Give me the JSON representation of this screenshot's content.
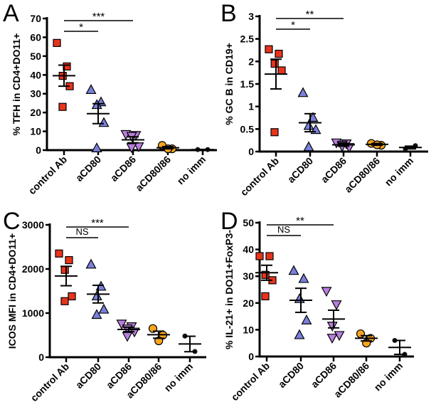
{
  "colors": {
    "control Ab": "#e8341c",
    "aCD80": "#7b80dc",
    "aCD86": "#b87fdc",
    "aCD80/86": "#f7a51e",
    "no imm": "#111111"
  },
  "chart_data": [
    {
      "panel": "A",
      "type": "scatter",
      "ylabel": "% TFH in CD4+DO11+",
      "ylim": [
        0,
        70
      ],
      "yticks": [
        0,
        10,
        20,
        30,
        40,
        50,
        60,
        70
      ],
      "categories": [
        "control Ab",
        "aCD80",
        "aCD86",
        "aCD80/86",
        "no imm"
      ],
      "values": [
        [
          57,
          44.5,
          39.5,
          34,
          23
        ],
        [
          32,
          25.5,
          24,
          14.5,
          1
        ],
        [
          8.5,
          8,
          7.5,
          2,
          1.5
        ],
        [
          2.5,
          0.7,
          0.7
        ],
        [
          0.3,
          0.3
        ]
      ],
      "mean": [
        39.6,
        19.4,
        5.5,
        1.3,
        0.3
      ],
      "sem": [
        5.6,
        5.3,
        1.6,
        0.6,
        0.1
      ],
      "significance": [
        {
          "from": "control Ab",
          "to": "aCD80",
          "label": "*"
        },
        {
          "from": "control Ab",
          "to": "aCD86",
          "label": "***"
        }
      ]
    },
    {
      "panel": "B",
      "type": "scatter",
      "ylabel": "% GC B in CD19+",
      "ylim": [
        0,
        3
      ],
      "yticks": [
        0,
        0.5,
        1.0,
        1.5,
        2.0,
        2.5,
        3.0
      ],
      "categories": [
        "control Ab",
        "aCD80",
        "aCD86",
        "aCD80/86",
        "no imm"
      ],
      "values": [
        [
          2.27,
          2.17,
          1.95,
          1.8,
          0.43
        ],
        [
          1.3,
          0.75,
          0.57,
          0.48,
          0.1
        ],
        [
          0.2,
          0.18,
          0.15,
          0.1,
          0.12
        ],
        [
          0.18,
          0.14,
          0.15
        ],
        [
          0.06,
          0.13
        ]
      ],
      "mean": [
        1.72,
        0.64,
        0.15,
        0.16,
        0.09
      ],
      "sem": [
        0.33,
        0.2,
        0.03,
        0.02,
        0.03
      ],
      "significance": [
        {
          "from": "control Ab",
          "to": "aCD80",
          "label": "*"
        },
        {
          "from": "control Ab",
          "to": "aCD86",
          "label": "**"
        }
      ]
    },
    {
      "panel": "C",
      "type": "scatter",
      "ylabel": "ICOS MFI in CD4+DO11+",
      "ylim": [
        0,
        3000
      ],
      "yticks": [
        0,
        1000,
        2000,
        3000
      ],
      "categories": [
        "control Ab",
        "aCD80",
        "aCD86",
        "aCD80/86",
        "no imm"
      ],
      "values": [
        [
          2350,
          2200,
          1980,
          1380,
          1270
        ],
        [
          2100,
          1600,
          1380,
          1080,
          960
        ],
        [
          760,
          700,
          650,
          580,
          480
        ],
        [
          650,
          500,
          370
        ],
        [
          480,
          130
        ]
      ],
      "mean": [
        1840,
        1430,
        630,
        510,
        300
      ],
      "sem": [
        220,
        200,
        50,
        80,
        175
      ],
      "significance": [
        {
          "from": "control Ab",
          "to": "aCD80",
          "label": "NS"
        },
        {
          "from": "control Ab",
          "to": "aCD86",
          "label": "***"
        }
      ]
    },
    {
      "panel": "D",
      "type": "scatter",
      "ylabel": "% IL-21+ in DO11+FoxP3-",
      "ylim": [
        0,
        50
      ],
      "yticks": [
        0,
        10,
        20,
        30,
        40,
        50
      ],
      "categories": [
        "control Ab",
        "aCD80",
        "aCD86",
        "aCD80/86",
        "no imm"
      ],
      "values": [
        [
          37.5,
          37.5,
          30.5,
          28.5,
          22.5
        ],
        [
          32,
          29,
          21.5,
          13.5,
          8
        ],
        [
          24.5,
          19.5,
          11.5,
          8,
          7
        ],
        [
          8.5,
          6.8,
          5
        ],
        [
          6,
          0.8
        ]
      ],
      "mean": [
        31.3,
        21,
        14,
        6.8,
        3.4
      ],
      "sem": [
        2.8,
        4.5,
        3.3,
        1,
        2.6
      ],
      "significance": [
        {
          "from": "control Ab",
          "to": "aCD80",
          "label": "NS"
        },
        {
          "from": "control Ab",
          "to": "aCD86",
          "label": "**"
        }
      ]
    }
  ]
}
